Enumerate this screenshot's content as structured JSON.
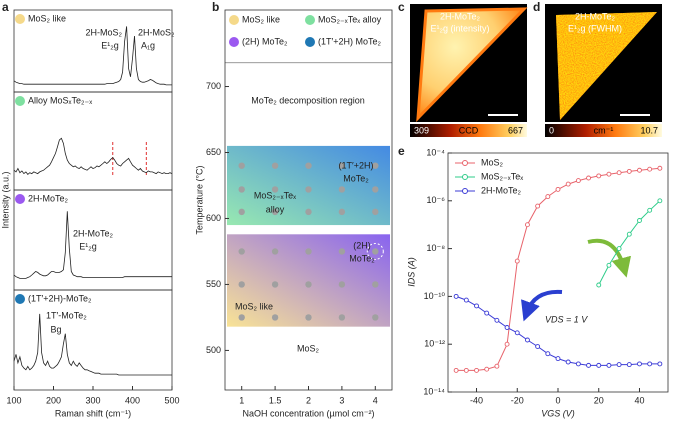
{
  "chart_data": [
    {
      "type": "spectra",
      "label": "a",
      "xlabel": "Raman shift (cm⁻¹)",
      "ylabel": "Intensity (a.u.)",
      "xlim": [
        100,
        500
      ],
      "xticks": [
        100,
        200,
        300,
        400,
        500
      ],
      "ylim": [
        0,
        100
      ],
      "x": [
        100,
        105,
        110,
        115,
        120,
        125,
        130,
        135,
        140,
        145,
        150,
        155,
        160,
        165,
        170,
        175,
        180,
        185,
        190,
        195,
        200,
        205,
        210,
        215,
        220,
        225,
        230,
        235,
        240,
        245,
        250,
        255,
        260,
        265,
        270,
        275,
        280,
        285,
        290,
        295,
        300,
        305,
        310,
        315,
        320,
        325,
        330,
        335,
        340,
        345,
        350,
        355,
        360,
        365,
        370,
        375,
        380,
        385,
        390,
        395,
        400,
        405,
        410,
        415,
        420,
        425,
        430,
        435,
        440,
        445,
        450,
        455,
        460,
        465,
        470,
        475,
        480,
        485,
        490,
        495,
        500
      ],
      "series": [
        {
          "name": "MoS₂ like",
          "color": "#f5d98a",
          "annotations": [
            "2H-MoS₂",
            "E¹₂g",
            "2H-MoS₂",
            "A₁g"
          ],
          "values": [
            12,
            10,
            9,
            8,
            8,
            7,
            7,
            7,
            7,
            7,
            7,
            7,
            7,
            7,
            7,
            7,
            7,
            7,
            7,
            7,
            7,
            7,
            7,
            7,
            7,
            7,
            7,
            7,
            7,
            7,
            7,
            7,
            7,
            7,
            7,
            7,
            7,
            7,
            7,
            7,
            7,
            7,
            7,
            7,
            7,
            7,
            7,
            8,
            8,
            8,
            8,
            9,
            10,
            11,
            14,
            25,
            70,
            92,
            30,
            18,
            45,
            78,
            30,
            14,
            11,
            10,
            10,
            11,
            12,
            14,
            13,
            11,
            9,
            8,
            7,
            7,
            7,
            6,
            6,
            6,
            6
          ]
        },
        {
          "name": "Alloy MoSₓTe₂₋ₓ",
          "color": "#7ee0a0",
          "reference_lines": [
            350,
            435
          ],
          "reference_color": "#e03030",
          "values": [
            20,
            18,
            22,
            17,
            19,
            16,
            18,
            15,
            17,
            16,
            18,
            17,
            16,
            18,
            19,
            20,
            22,
            24,
            26,
            30,
            35,
            40,
            48,
            56,
            58,
            52,
            40,
            32,
            28,
            26,
            24,
            25,
            23,
            22,
            24,
            22,
            21,
            20,
            22,
            24,
            22,
            23,
            25,
            24,
            26,
            28,
            30,
            28,
            30,
            33,
            35,
            32,
            28,
            26,
            25,
            28,
            30,
            32,
            34,
            30,
            26,
            24,
            22,
            20,
            22,
            19,
            18,
            17,
            19,
            18,
            18,
            17,
            16,
            18,
            17,
            16,
            17,
            16,
            16,
            17,
            16
          ]
        },
        {
          "name": "2H-MoTe₂",
          "color": "#9b59f0",
          "annotations": [
            "2H-MoTe₂",
            "E¹₂g"
          ],
          "values": [
            14,
            12,
            11,
            10,
            10,
            10,
            10,
            11,
            12,
            14,
            16,
            18,
            17,
            15,
            14,
            13,
            13,
            14,
            16,
            18,
            18,
            17,
            17,
            17,
            18,
            20,
            40,
            88,
            45,
            18,
            14,
            13,
            12,
            12,
            12,
            11,
            11,
            11,
            11,
            11,
            11,
            11,
            11,
            11,
            11,
            11,
            11,
            11,
            11,
            11,
            11,
            11,
            11,
            11,
            11,
            11,
            12,
            12,
            12,
            12,
            12,
            12,
            12,
            12,
            12,
            12,
            12,
            12,
            12,
            12,
            12,
            12,
            12,
            12,
            12,
            12,
            12,
            12,
            12,
            12,
            12
          ]
        },
        {
          "name": "(1T′+2H)-MoTe₂",
          "color": "#1f78b4",
          "annotations": [
            "1T′-MoTe₂",
            "Bg"
          ],
          "values": [
            30,
            38,
            28,
            35,
            25,
            22,
            20,
            24,
            20,
            22,
            25,
            30,
            40,
            85,
            40,
            28,
            25,
            30,
            24,
            22,
            22,
            24,
            26,
            30,
            35,
            50,
            62,
            38,
            28,
            25,
            30,
            26,
            24,
            28,
            25,
            22,
            20,
            20,
            19,
            18,
            17,
            16,
            16,
            16,
            15,
            15,
            15,
            15,
            15,
            15,
            15,
            15,
            15,
            14,
            14,
            14,
            14,
            14,
            14,
            14,
            14,
            14,
            14,
            14,
            14,
            14,
            14,
            14,
            14,
            14,
            14,
            14,
            14,
            14,
            14,
            14,
            14,
            14,
            14,
            14,
            14
          ]
        }
      ]
    },
    {
      "type": "phase",
      "label": "b",
      "xlabel": "NaOH concentration (µmol cm⁻²)",
      "ylabel": "Temperature (°C)",
      "categories": [
        "1",
        "1.5",
        "2",
        "3",
        "4"
      ],
      "ylim": [
        470,
        758
      ],
      "yticks": [
        500,
        550,
        600,
        650,
        700
      ],
      "boundary": 718,
      "points_y": [
        525,
        550,
        575,
        605,
        622,
        640
      ],
      "point_color": "#a0a0a0",
      "legend": [
        {
          "name": "MoS₂ like",
          "color": "#f5d98a"
        },
        {
          "name": "MoS₂₋ₓTeₓ alloy",
          "color": "#7ee0a0"
        },
        {
          "name": "(2H) MoTe₂",
          "color": "#9b59f0"
        },
        {
          "name": "(1T′+2H) MoTe₂",
          "color": "#1f78b4"
        }
      ],
      "regions": [
        {
          "ylim": [
            595,
            655
          ],
          "colors": [
            "#8de6a8",
            "#2f7de0"
          ],
          "labels": [
            "(1T′+2H)",
            "MoTe₂",
            "MoS₂₋ₓTeₓ",
            "alloy"
          ]
        },
        {
          "ylim": [
            518,
            588
          ],
          "colors": [
            "#f8e08a",
            "#7b52ee"
          ],
          "labels": [
            "(2H)",
            "MoTe₂",
            "MoS₂ like"
          ]
        }
      ],
      "annotations": [
        "MoTe₂ decomposition region",
        "MoS₂"
      ]
    },
    {
      "type": "heatmap",
      "label": "c",
      "title": [
        "2H-MoTe₂",
        "E¹₂g (intensity)"
      ],
      "colorbar": {
        "lim": [
          309,
          667
        ],
        "ticks": [
          309,
          667
        ],
        "label": "CCD"
      }
    },
    {
      "type": "heatmap",
      "label": "d",
      "title": [
        "2H-MoTe₂",
        "E¹₂g (FWHM)"
      ],
      "colorbar": {
        "lim": [
          0,
          10.7
        ],
        "ticks": [
          0,
          10.7
        ],
        "label": "cm⁻¹"
      }
    },
    {
      "type": "line",
      "label": "e",
      "xlabel": "VGS (V)",
      "ylabel": "IDS (A)",
      "log_y": true,
      "xlim": [
        -54,
        54
      ],
      "xticks": [
        -40,
        -20,
        0,
        20,
        40
      ],
      "ylim": [
        1e-14,
        0.0001
      ],
      "yticks": [
        {
          "value": 1e-14,
          "label": "10⁻¹⁴"
        },
        {
          "value": 1e-12,
          "label": "10⁻¹²"
        },
        {
          "value": 1e-10,
          "label": "10⁻¹⁰"
        },
        {
          "value": 1e-08,
          "label": "10⁻⁸"
        },
        {
          "value": 1e-06,
          "label": "10⁻⁶"
        },
        {
          "value": 0.0001,
          "label": "10⁻⁴"
        }
      ],
      "annotation": "VDS = 1 V",
      "x": [
        -50,
        -45,
        -40,
        -35,
        -30,
        -25,
        -20,
        -15,
        -10,
        -5,
        0,
        5,
        10,
        15,
        20,
        25,
        30,
        35,
        40,
        45,
        50
      ],
      "series": [
        {
          "name": "MoS₂",
          "color": "#e8636b",
          "values": [
            8e-14,
            8e-14,
            8e-14,
            9e-14,
            1.2e-13,
            1e-12,
            3e-09,
            1e-07,
            6e-07,
            1.5e-06,
            3e-06,
            5e-06,
            7e-06,
            9e-06,
            1.1e-05,
            1.3e-05,
            1.5e-05,
            1.7e-05,
            1.9e-05,
            2.1e-05,
            2.3e-05
          ]
        },
        {
          "name": "MoS₂₋ₓTeₓ",
          "color": "#2ecc8a",
          "values": [
            null,
            null,
            null,
            null,
            null,
            null,
            null,
            null,
            null,
            null,
            null,
            null,
            null,
            null,
            3e-10,
            2e-09,
            1e-08,
            4e-08,
            1.5e-07,
            4e-07,
            1e-06
          ]
        },
        {
          "name": "2H-MoTe₂",
          "color": "#3b3bd6",
          "values": [
            1e-10,
            7e-11,
            4e-11,
            2e-11,
            1e-11,
            5e-12,
            3e-12,
            1.5e-12,
            8e-13,
            4e-13,
            2.5e-13,
            1.8e-13,
            1.5e-13,
            1.3e-13,
            1.3e-13,
            1.3e-13,
            1.4e-13,
            1.4e-13,
            1.5e-13,
            1.5e-13,
            1.5e-13
          ]
        }
      ]
    }
  ]
}
